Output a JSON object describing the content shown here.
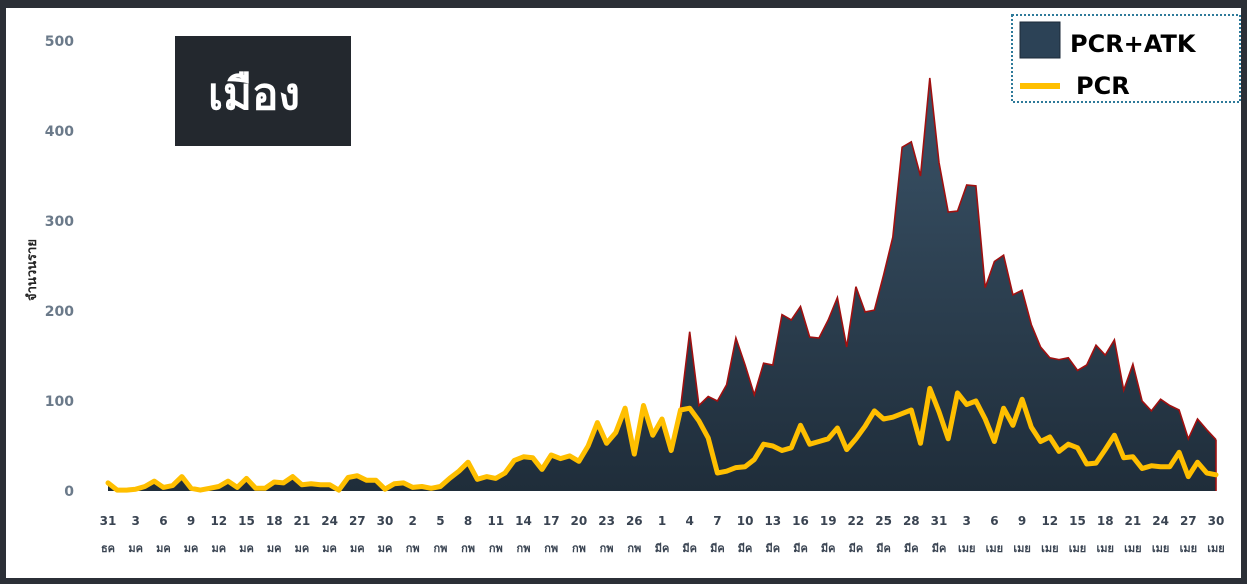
{
  "chart_data": {
    "type": "area",
    "title": "เมือง",
    "ylabel": "จำนวนราย",
    "ylim": [
      0,
      500
    ],
    "yticks": [
      0,
      100,
      200,
      300,
      400,
      500
    ],
    "grid": false,
    "legend_position": "top-right",
    "x_start_index": 0,
    "x_tick_labels": [
      {
        "day": "31",
        "month": "ธค"
      },
      {
        "day": "3",
        "month": "มค"
      },
      {
        "day": "6",
        "month": "มค"
      },
      {
        "day": "9",
        "month": "มค"
      },
      {
        "day": "12",
        "month": "มค"
      },
      {
        "day": "15",
        "month": "มค"
      },
      {
        "day": "18",
        "month": "มค"
      },
      {
        "day": "21",
        "month": "มค"
      },
      {
        "day": "24",
        "month": "มค"
      },
      {
        "day": "27",
        "month": "มค"
      },
      {
        "day": "30",
        "month": "มค"
      },
      {
        "day": "2",
        "month": "กพ"
      },
      {
        "day": "5",
        "month": "กพ"
      },
      {
        "day": "8",
        "month": "กพ"
      },
      {
        "day": "11",
        "month": "กพ"
      },
      {
        "day": "14",
        "month": "กพ"
      },
      {
        "day": "17",
        "month": "กพ"
      },
      {
        "day": "20",
        "month": "กพ"
      },
      {
        "day": "23",
        "month": "กพ"
      },
      {
        "day": "26",
        "month": "กพ"
      },
      {
        "day": "1",
        "month": "มีค"
      },
      {
        "day": "4",
        "month": "มีค"
      },
      {
        "day": "7",
        "month": "มีค"
      },
      {
        "day": "10",
        "month": "มีค"
      },
      {
        "day": "13",
        "month": "มีค"
      },
      {
        "day": "16",
        "month": "มีค"
      },
      {
        "day": "19",
        "month": "มีค"
      },
      {
        "day": "22",
        "month": "มีค"
      },
      {
        "day": "25",
        "month": "มีค"
      },
      {
        "day": "28",
        "month": "มีค"
      },
      {
        "day": "31",
        "month": "มีค"
      },
      {
        "day": "3",
        "month": "เมย"
      },
      {
        "day": "6",
        "month": "เมย"
      },
      {
        "day": "9",
        "month": "เมย"
      },
      {
        "day": "12",
        "month": "เมย"
      },
      {
        "day": "15",
        "month": "เมย"
      },
      {
        "day": "18",
        "month": "เมย"
      },
      {
        "day": "21",
        "month": "เมย"
      },
      {
        "day": "24",
        "month": "เมย"
      },
      {
        "day": "27",
        "month": "เมย"
      },
      {
        "day": "30",
        "month": "เมย"
      }
    ],
    "series": [
      {
        "name": "PCR+ATK",
        "color": "#2c4256",
        "stroke": "#a01010",
        "values": [
          9,
          1,
          1,
          2,
          5,
          11,
          4,
          6,
          16,
          3,
          1,
          3,
          5,
          11,
          4,
          14,
          3,
          3,
          10,
          9,
          16,
          7,
          8,
          7,
          7,
          1,
          15,
          17,
          12,
          12,
          2,
          8,
          9,
          4,
          5,
          3,
          5,
          14,
          22,
          32,
          13,
          16,
          14,
          20,
          34,
          38,
          37,
          24,
          40,
          36,
          39,
          33,
          50,
          76,
          53,
          65,
          92,
          41,
          95,
          62,
          80,
          45,
          92,
          177,
          95,
          105,
          100,
          118,
          170,
          140,
          107,
          142,
          140,
          196,
          190,
          205,
          171,
          170,
          190,
          215,
          160,
          227,
          199,
          201,
          240,
          282,
          382,
          388,
          350,
          459,
          365,
          310,
          311,
          340,
          339,
          226,
          255,
          262,
          218,
          223,
          185,
          160,
          148,
          146,
          148,
          134,
          140,
          162,
          151,
          168,
          112,
          141,
          100,
          89,
          102,
          95,
          90,
          58,
          80,
          68,
          57
        ]
      },
      {
        "name": "PCR",
        "color": "#ffbf00",
        "values": [
          9,
          1,
          1,
          2,
          5,
          11,
          4,
          6,
          16,
          3,
          1,
          3,
          5,
          11,
          4,
          14,
          3,
          3,
          10,
          9,
          16,
          7,
          8,
          7,
          7,
          1,
          15,
          17,
          12,
          12,
          2,
          8,
          9,
          4,
          5,
          3,
          5,
          14,
          22,
          32,
          13,
          16,
          14,
          20,
          34,
          38,
          37,
          24,
          40,
          36,
          39,
          33,
          50,
          76,
          53,
          65,
          92,
          41,
          95,
          62,
          80,
          45,
          90,
          92,
          78,
          59,
          20,
          22,
          26,
          27,
          35,
          52,
          50,
          45,
          48,
          73,
          52,
          55,
          58,
          70,
          46,
          58,
          72,
          89,
          80,
          82,
          86,
          90,
          53,
          114,
          88,
          58,
          109,
          96,
          100,
          80,
          55,
          92,
          73,
          102,
          71,
          55,
          60,
          44,
          52,
          48,
          30,
          31,
          46,
          62,
          37,
          38,
          25,
          28,
          27,
          27,
          43,
          16,
          32,
          20,
          18
        ]
      }
    ]
  }
}
